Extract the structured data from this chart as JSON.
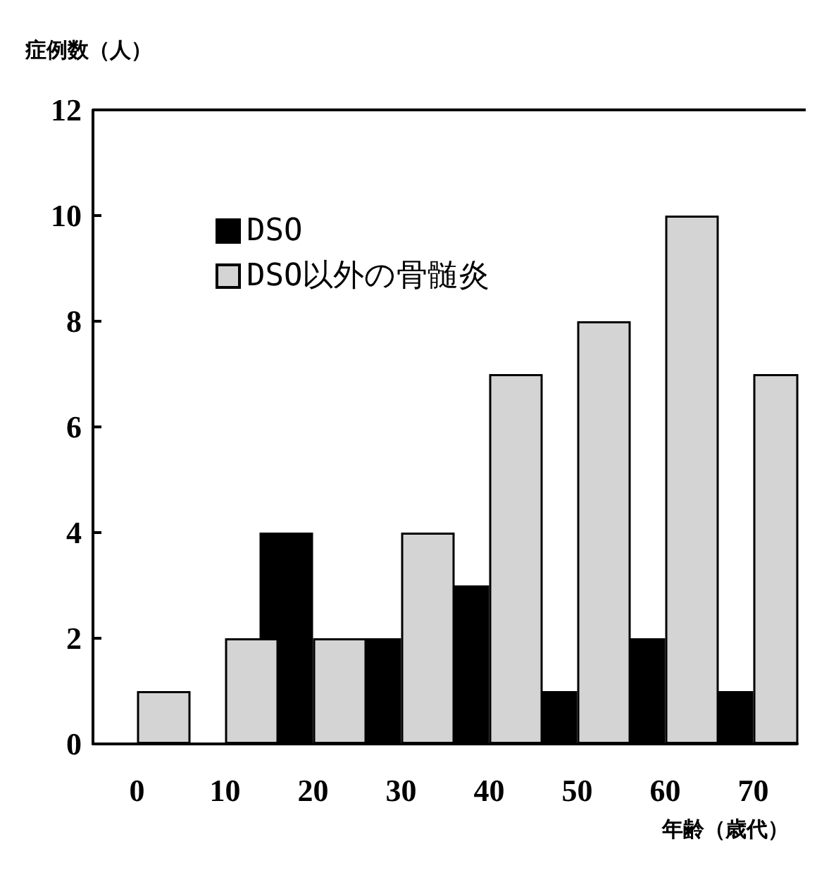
{
  "chart_data": {
    "type": "bar",
    "ylabel": "症例数（人）",
    "xlabel": "年齢（歳代）",
    "categories": [
      "0",
      "10",
      "20",
      "30",
      "40",
      "50",
      "60",
      "70"
    ],
    "series": [
      {
        "name": "DSO",
        "color": "#000000",
        "values": [
          0,
          0,
          4,
          2,
          3,
          1,
          2,
          1
        ]
      },
      {
        "name": "DSO以外の骨髄炎",
        "color": "#d4d4d4",
        "values": [
          1,
          2,
          2,
          4,
          7,
          8,
          10,
          7
        ]
      }
    ],
    "ylim": [
      0,
      12
    ],
    "yticks": [
      0,
      2,
      4,
      6,
      8,
      10,
      12
    ],
    "grid": false,
    "legend": "top left"
  }
}
